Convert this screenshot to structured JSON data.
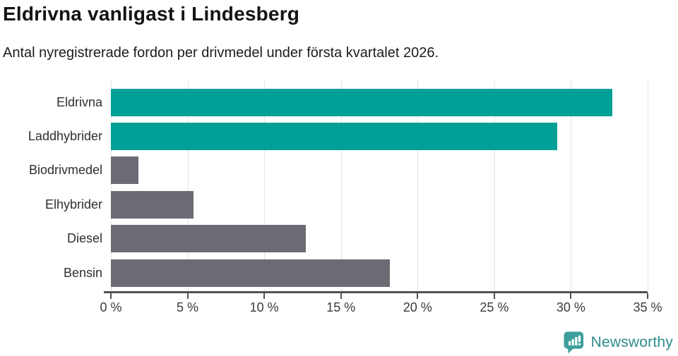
{
  "header": {
    "title": "Eldrivna vanligast i Lindesberg",
    "subtitle": "Antal nyregistrerade fordon per drivmedel under första kvartalet 2026."
  },
  "chart_data": {
    "type": "bar",
    "orientation": "horizontal",
    "title": "Eldrivna vanligast i Lindesberg",
    "subtitle": "Antal nyregistrerade fordon per drivmedel under första kvartalet 2026.",
    "categories": [
      "Eldrivna",
      "Laddhybrider",
      "Biodrivmedel",
      "Elhybrider",
      "Diesel",
      "Bensin"
    ],
    "values": [
      32.7,
      29.1,
      1.8,
      5.4,
      12.7,
      18.2
    ],
    "unit": "%",
    "xlabel": "",
    "ylabel": "",
    "xlim": [
      0,
      35
    ],
    "x_ticks": [
      0,
      5,
      10,
      15,
      20,
      25,
      30,
      35
    ],
    "x_tick_labels": [
      "0 %",
      "5 %",
      "10 %",
      "15 %",
      "20 %",
      "25 %",
      "30 %",
      "35 %"
    ],
    "grid": "vertical-on",
    "legend": "none",
    "highlight_color": "#00A096",
    "base_color": "#6C6B73",
    "bar_colors": [
      "#00A096",
      "#00A096",
      "#6C6B73",
      "#6C6B73",
      "#6C6B73",
      "#6C6B73"
    ]
  },
  "footer": {
    "brand_name": "Newsworthy",
    "brand_icon": "newsworthy-bar-chart-bubble-icon",
    "brand_text_color": "#2E8C8A",
    "brand_icon_color": "#3DA09D"
  },
  "colors": {
    "background": "#FFFFFF",
    "gridline": "#E3E3E3",
    "axis_line": "#515157",
    "tick_label": "#3A3A40",
    "category_label": "#2E2E33",
    "title": "#141414",
    "subtitle": "#1C1C1C"
  }
}
